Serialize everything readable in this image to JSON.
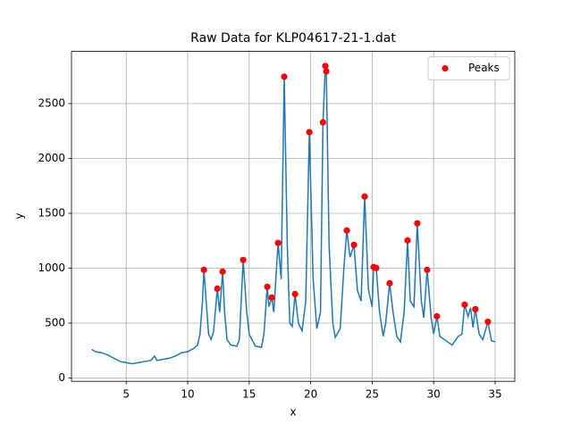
{
  "chart_data": {
    "type": "line",
    "title": "Raw Data for KLP04617-21-1.dat",
    "x_label": "x",
    "y_label": "y",
    "xlim": [
      0.55,
      36.6
    ],
    "ylim": [
      -30,
      2975
    ],
    "xticks": [
      5,
      10,
      15,
      20,
      25,
      30,
      35
    ],
    "yticks": [
      0,
      500,
      1000,
      1500,
      2000,
      2500
    ],
    "grid": true,
    "legend": "upper right",
    "series": [
      {
        "color": "#1f77b4",
        "x": [
          2.2,
          2.5,
          3,
          3.5,
          4,
          4.5,
          5,
          5.5,
          6,
          6.5,
          7,
          7.3,
          7.5,
          8,
          8.5,
          9,
          9.5,
          10,
          10.5,
          10.8,
          11.0,
          11.2,
          11.32,
          11.5,
          11.7,
          11.9,
          12.1,
          12.41,
          12.6,
          12.84,
          13.0,
          13.2,
          13.5,
          14,
          14.2,
          14.51,
          14.8,
          15.0,
          15.5,
          16,
          16.2,
          16.47,
          16.6,
          16.84,
          17.0,
          17.35,
          17.6,
          17.85,
          18.1,
          18.3,
          18.5,
          18.73,
          19.0,
          19.3,
          19.6,
          19.89,
          20.2,
          20.5,
          20.8,
          21.0,
          21.19,
          21.27,
          21.5,
          21.8,
          22.0,
          22.4,
          22.7,
          22.94,
          23.2,
          23.52,
          23.8,
          24.1,
          24.39,
          24.7,
          25.0,
          25.12,
          25.33,
          25.6,
          25.9,
          26.1,
          26.42,
          26.7,
          27.0,
          27.3,
          27.6,
          27.88,
          28.1,
          28.4,
          28.67,
          29.0,
          29.2,
          29.47,
          29.8,
          30.0,
          30.27,
          30.5,
          31,
          31.5,
          32,
          32.3,
          32.52,
          32.8,
          33.0,
          33.2,
          33.39,
          33.7,
          34.0,
          34.41,
          34.7,
          35.0
        ],
        "values": [
          260,
          240,
          230,
          210,
          180,
          150,
          140,
          130,
          140,
          150,
          160,
          200,
          160,
          170,
          180,
          200,
          230,
          240,
          270,
          300,
          400,
          700,
          985,
          700,
          400,
          350,
          420,
          814,
          600,
          969,
          600,
          350,
          300,
          290,
          350,
          1075,
          600,
          400,
          290,
          280,
          400,
          831,
          650,
          733,
          600,
          1230,
          900,
          2744,
          1200,
          500,
          470,
          765,
          500,
          430,
          700,
          2239,
          900,
          450,
          600,
          2329,
          2842,
          2793,
          1200,
          500,
          370,
          450,
          1000,
          1344,
          1100,
          1213,
          800,
          700,
          1653,
          800,
          650,
          1010,
          1002,
          600,
          380,
          500,
          863,
          600,
          380,
          330,
          600,
          1254,
          700,
          650,
          1409,
          700,
          550,
          985,
          550,
          400,
          562,
          380,
          340,
          300,
          380,
          400,
          668,
          560,
          640,
          460,
          627,
          400,
          350,
          513,
          340,
          330
        ]
      },
      {
        "name": "Peaks",
        "type": "scatter",
        "color": "#ff0000",
        "x": [
          11.32,
          12.41,
          12.84,
          14.51,
          16.47,
          16.84,
          17.35,
          17.85,
          18.73,
          19.89,
          21.0,
          21.19,
          21.27,
          22.94,
          23.52,
          24.39,
          25.12,
          25.33,
          26.42,
          27.88,
          28.67,
          29.47,
          30.27,
          32.52,
          33.39,
          34.41
        ],
        "values": [
          985,
          814,
          969,
          1075,
          831,
          733,
          1230,
          2744,
          765,
          2239,
          2329,
          2842,
          2793,
          1344,
          1213,
          1653,
          1010,
          1002,
          863,
          1254,
          1409,
          985,
          562,
          668,
          627,
          513
        ]
      }
    ]
  }
}
